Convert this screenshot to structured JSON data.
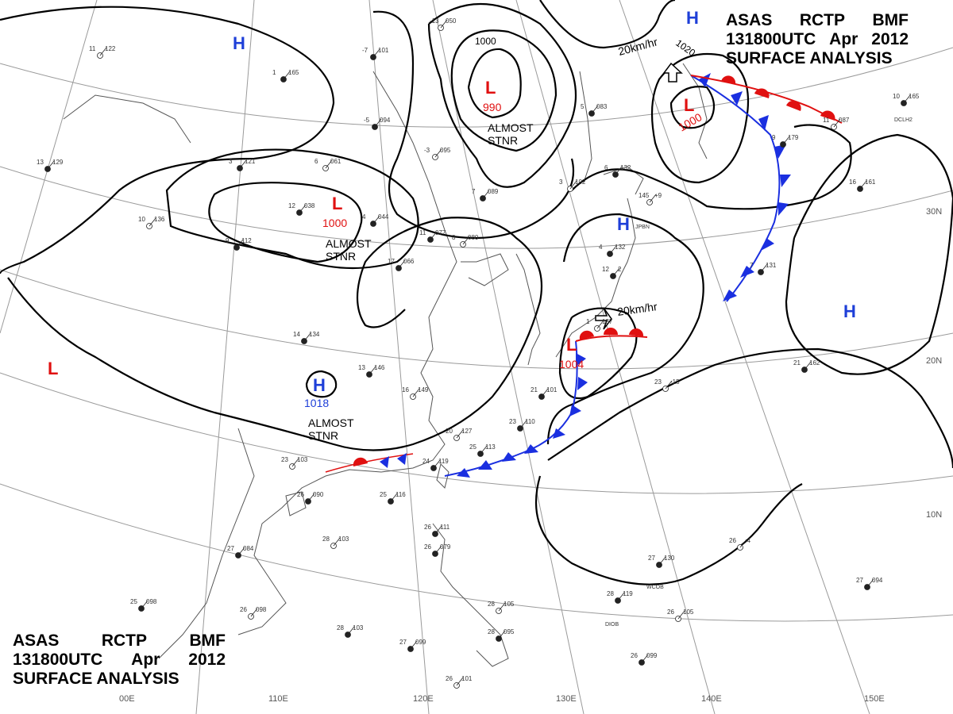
{
  "title": {
    "line1": [
      "ASAS",
      "RCTP",
      "BMF"
    ],
    "line2": [
      "131800UTC",
      "Apr",
      "2012"
    ],
    "line3": "SURFACE ANALYSIS"
  },
  "grid": {
    "lon_labels": [
      "110E",
      "120E",
      "130E",
      "140E",
      "150E"
    ],
    "lat_labels": [
      "30N",
      "20N",
      "10N"
    ],
    "partial_lon_label": "00E"
  },
  "pressure_centers": [
    {
      "type": "H",
      "value": ""
    },
    {
      "type": "H",
      "value": ""
    },
    {
      "type": "H",
      "value": ""
    },
    {
      "type": "H",
      "value": ""
    },
    {
      "type": "H",
      "value": "1018"
    },
    {
      "type": "L",
      "value": "990"
    },
    {
      "type": "L",
      "value": "1000"
    },
    {
      "type": "L",
      "value": "1000"
    },
    {
      "type": "L",
      "value": "1004"
    },
    {
      "type": "L",
      "value": ""
    }
  ],
  "isobar_labels": [
    "1000",
    "1020"
  ],
  "annotations": [
    {
      "text": "ALMOST\nSTNR"
    },
    {
      "text": "ALMOST\nSTNR"
    },
    {
      "text": "ALMOST\nSTNR"
    },
    {
      "text": "20km/hr"
    },
    {
      "text": "20km/hr"
    }
  ],
  "station_ids": [
    "JPBN",
    "WCOB",
    "DIOB",
    "DCLH2"
  ],
  "stations": [
    {
      "t": "11",
      "p": "122"
    },
    {
      "t": "1",
      "p": "165"
    },
    {
      "t": "-7",
      "p": "101"
    },
    {
      "t": "-13",
      "p": "050"
    },
    {
      "t": "13",
      "p": "129"
    },
    {
      "t": "3",
      "p": "121"
    },
    {
      "t": "6",
      "p": "061"
    },
    {
      "t": "12",
      "p": "038"
    },
    {
      "t": "4",
      "p": "044"
    },
    {
      "t": "10",
      "p": "136"
    },
    {
      "t": "9",
      "p": "112"
    },
    {
      "t": "11",
      "p": "077"
    },
    {
      "t": "8",
      "p": "080"
    },
    {
      "t": "17",
      "p": "066"
    },
    {
      "t": "-5",
      "p": "094"
    },
    {
      "t": "-3",
      "p": "095"
    },
    {
      "t": "7",
      "p": "089"
    },
    {
      "t": "5",
      "p": "083"
    },
    {
      "t": "3",
      "p": "102"
    },
    {
      "t": "6",
      "p": "132"
    },
    {
      "t": "4",
      "p": "132"
    },
    {
      "t": "145",
      "p": "+9"
    },
    {
      "t": "14",
      "p": "134"
    },
    {
      "t": "13",
      "p": "146"
    },
    {
      "t": "16",
      "p": "149"
    },
    {
      "t": "21",
      "p": "101"
    },
    {
      "t": "23",
      "p": "110"
    },
    {
      "t": "20",
      "p": "127"
    },
    {
      "t": "25",
      "p": "113"
    },
    {
      "t": "24",
      "p": "119"
    },
    {
      "t": "23",
      "p": "103"
    },
    {
      "t": "26",
      "p": "090"
    },
    {
      "t": "25",
      "p": "116"
    },
    {
      "t": "28",
      "p": "103"
    },
    {
      "t": "27",
      "p": "084"
    },
    {
      "t": "25",
      "p": "098"
    },
    {
      "t": "26",
      "p": "098"
    },
    {
      "t": "28",
      "p": "103"
    },
    {
      "t": "27",
      "p": "099"
    },
    {
      "t": "26",
      "p": "101"
    },
    {
      "t": "26",
      "p": "111"
    },
    {
      "t": "26",
      "p": "079"
    },
    {
      "t": "28",
      "p": "105"
    },
    {
      "t": "28",
      "p": "095"
    },
    {
      "t": "28",
      "p": "119"
    },
    {
      "t": "26",
      "p": "105"
    },
    {
      "t": "26",
      "p": "099"
    },
    {
      "t": "27",
      "p": "130"
    },
    {
      "t": "26",
      "p": "-4"
    },
    {
      "t": "27",
      "p": "094"
    },
    {
      "t": "21",
      "p": "162"
    },
    {
      "t": "23",
      "p": "-15"
    },
    {
      "t": "7",
      "p": "131"
    },
    {
      "t": "16",
      "p": "161"
    },
    {
      "t": "11",
      "p": "087"
    },
    {
      "t": "9",
      "p": "179"
    },
    {
      "t": "10",
      "p": "165"
    },
    {
      "t": "1",
      "p": "137"
    },
    {
      "t": "12",
      "p": "2"
    }
  ],
  "colors": {
    "isobar": "#000000",
    "grid": "#9a9a9a",
    "coast": "#555555",
    "high": "#1e3fd8",
    "low": "#e01010",
    "cold_front": "#1a2fe0",
    "warm_front": "#e01010"
  }
}
